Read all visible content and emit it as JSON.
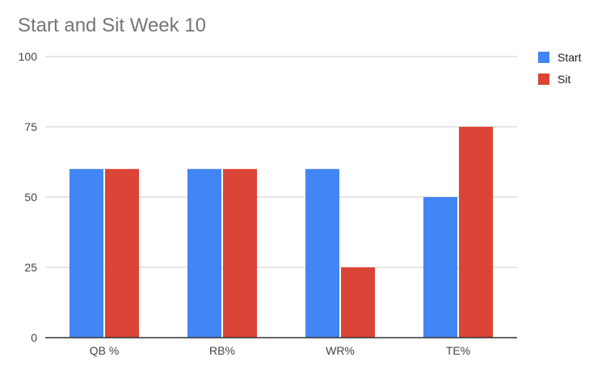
{
  "chart_data": {
    "type": "bar",
    "title": "Start and Sit Week 10",
    "xlabel": "",
    "ylabel": "",
    "categories": [
      "QB %",
      "RB%",
      "WR%",
      "TE%"
    ],
    "series": [
      {
        "name": "Start",
        "color": "#4285f4",
        "values": [
          60,
          60,
          60,
          50
        ]
      },
      {
        "name": "Sit",
        "color": "#db4437",
        "values": [
          60,
          60,
          25,
          75
        ]
      }
    ],
    "ylim": [
      0,
      100
    ],
    "yticks": [
      "0",
      "25",
      "50",
      "75",
      "100"
    ],
    "grid": true,
    "legend_position": "right"
  }
}
